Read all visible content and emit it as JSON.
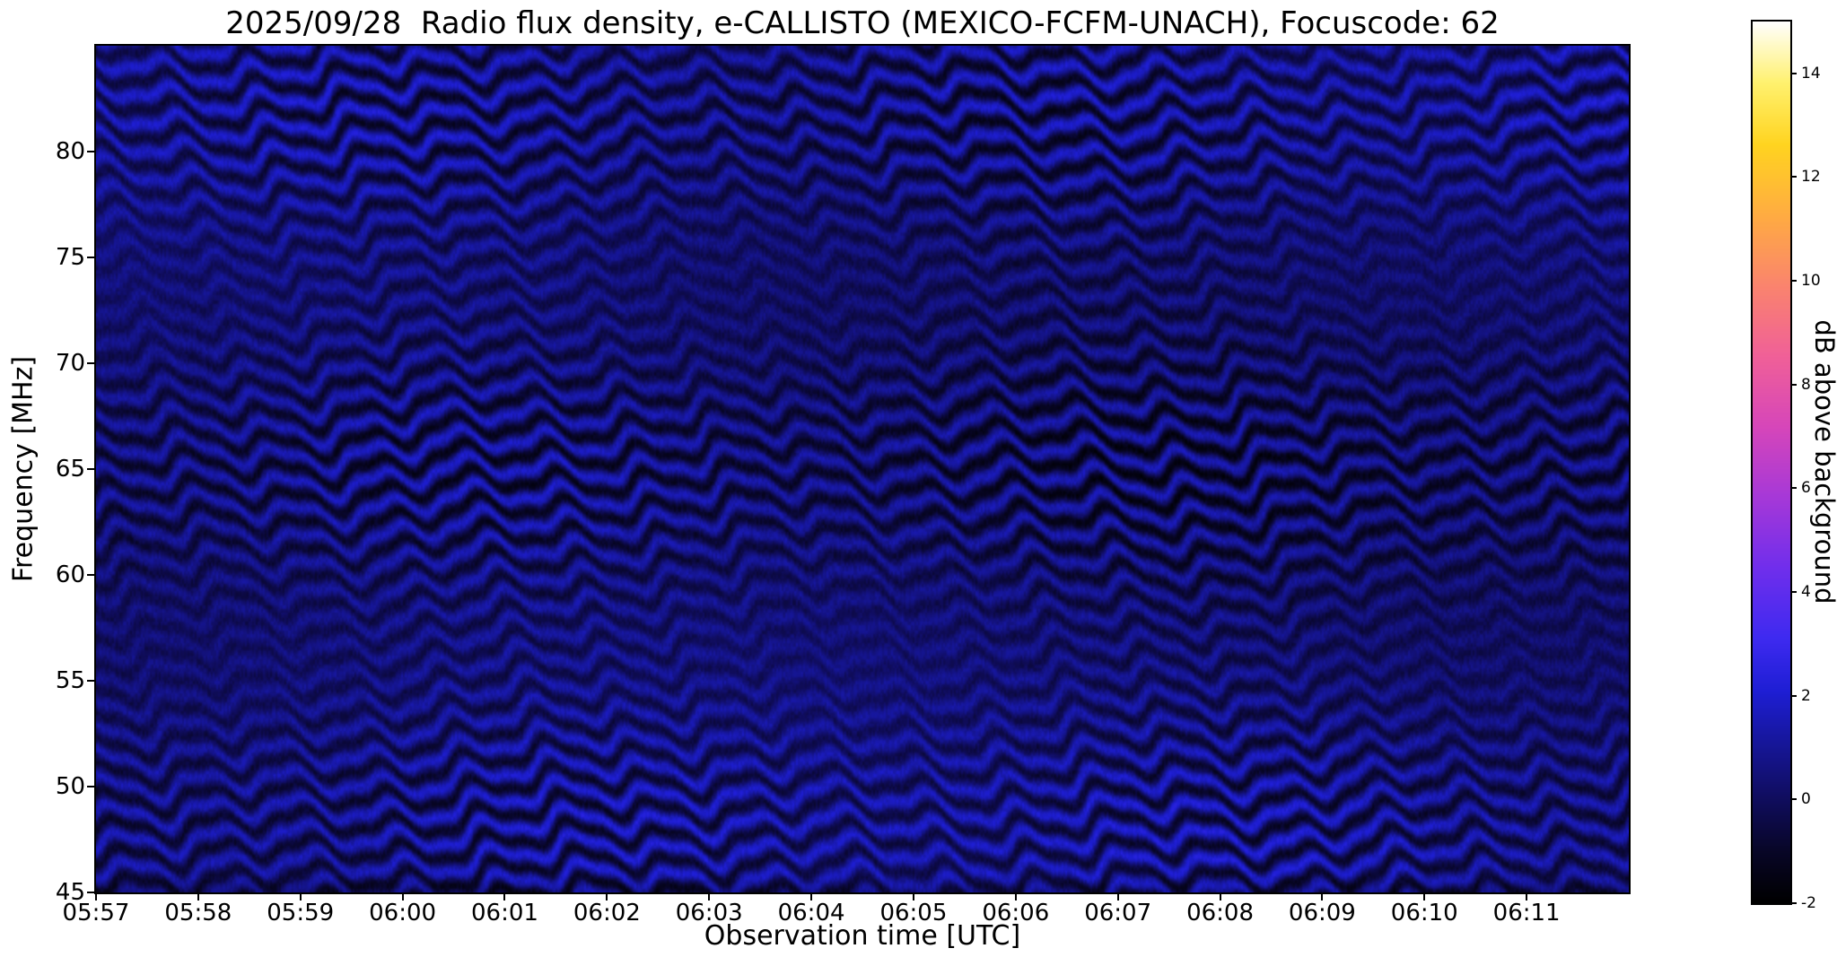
{
  "chart_data": {
    "type": "heatmap",
    "title": "2025/09/28  Radio flux density, e-CALLISTO (MEXICO-FCFM-UNACH), Focuscode: 62",
    "xlabel": "Observation time [UTC]",
    "ylabel": "Frequency [MHz]",
    "x_ticks": [
      "05:57",
      "05:58",
      "05:59",
      "06:00",
      "06:01",
      "06:02",
      "06:03",
      "06:04",
      "06:05",
      "06:06",
      "06:07",
      "06:08",
      "06:09",
      "06:10",
      "06:11"
    ],
    "x_axis_total_minutes": 15,
    "y_ticks": [
      80,
      75,
      70,
      65,
      60,
      55,
      50,
      45
    ],
    "ylim": [
      45,
      85
    ],
    "grid": false,
    "legend": "none",
    "colorbar": {
      "label": "dB above background",
      "ticks": [
        14,
        12,
        10,
        8,
        6,
        4,
        2,
        0,
        -2
      ],
      "vmin": -2,
      "vmax": 15,
      "position": "right",
      "colormap_stops": [
        [
          0.0,
          0,
          0,
          0
        ],
        [
          0.06,
          8,
          6,
          40
        ],
        [
          0.12,
          16,
          13,
          95
        ],
        [
          0.18,
          22,
          22,
          152
        ],
        [
          0.24,
          30,
          30,
          212
        ],
        [
          0.3,
          62,
          42,
          240
        ],
        [
          0.38,
          112,
          46,
          236
        ],
        [
          0.46,
          166,
          56,
          216
        ],
        [
          0.54,
          214,
          70,
          186
        ],
        [
          0.62,
          240,
          96,
          152
        ],
        [
          0.7,
          250,
          132,
          110
        ],
        [
          0.78,
          255,
          172,
          66
        ],
        [
          0.86,
          255,
          212,
          32
        ],
        [
          0.93,
          255,
          241,
          110
        ],
        [
          1.0,
          255,
          255,
          255
        ]
      ]
    },
    "pattern": {
      "description": "Dynamic spectrum: dark navy-blue background with quasi-horizontal interference fringes (~1.3 MHz spacing) that wiggle and drift with time over the whole 45-85 MHz band; no solar burst present; values stay roughly between -2 and +2.5 dB above background.",
      "background_db": 0.3,
      "fringe_spacing_mhz": 1.3,
      "fringe_amplitude_db": 1.0,
      "noise_db": 0.3,
      "wiggles": [
        {
          "a": 0.35,
          "ft": 17,
          "ff": 0.45,
          "p": 0.0
        },
        {
          "a": 0.25,
          "ft": 5.3,
          "ff": 0.12,
          "p": 1.3
        },
        {
          "a": 0.35,
          "ft": 1.7,
          "ff": 0.0,
          "p": 0.5
        },
        {
          "a": 0.15,
          "ft": 37,
          "ff": 0.8,
          "p": 2.1
        }
      ],
      "amp_mod": [
        {
          "a": 0.4,
          "ff": 0.37,
          "ft": 0,
          "p": 2.66
        },
        {
          "a": 0.22,
          "ff": 0.05,
          "ft": 2.3,
          "p": 1.0
        }
      ],
      "base_mod": [
        {
          "a": 0.2,
          "ff": 0.16,
          "ft": 0,
          "p": 0.5
        },
        {
          "a": 0.15,
          "ff": 0.1,
          "ft": 0.9,
          "p": 0.0
        }
      ]
    }
  }
}
